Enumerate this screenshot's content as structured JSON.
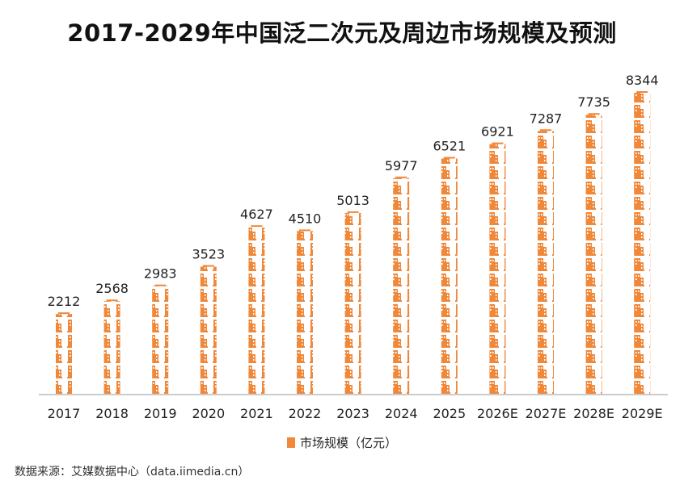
{
  "chart_data": {
    "type": "bar",
    "title": "2017-2029年中国泛二次元及周边市场规模及预测",
    "categories": [
      "2017",
      "2018",
      "2019",
      "2020",
      "2021",
      "2022",
      "2023",
      "2024",
      "2025",
      "2026E",
      "2027E",
      "2028E",
      "2029E"
    ],
    "series": [
      {
        "name": "市场规模（亿元）",
        "values": [
          2212,
          2568,
          2983,
          3523,
          4627,
          4510,
          5013,
          5977,
          6521,
          6921,
          7287,
          7735,
          8344
        ]
      }
    ],
    "xlabel": "",
    "ylabel": "",
    "ylim": [
      0,
      8344
    ],
    "grid": false,
    "legend": "bottom-center",
    "bar_icon": "building-icon",
    "colors": {
      "bar": "#f0883a",
      "axis": "#bbbbbb"
    }
  },
  "source": "数据来源：艾媒数据中心（data.iimedia.cn）"
}
